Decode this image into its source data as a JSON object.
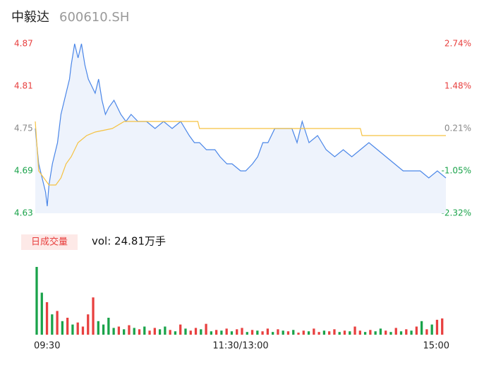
{
  "header": {
    "name": "中毅达",
    "code": "600610.SH"
  },
  "chart_data": [
    {
      "type": "line",
      "xlim": [
        0,
        240
      ],
      "ylim": [
        4.63,
        4.87
      ],
      "yticks": [
        4.87,
        4.81,
        4.75,
        4.69,
        4.63
      ],
      "y2lim": [
        -2.32,
        2.74
      ],
      "y2ticks": [
        {
          "value": 2.74,
          "label": "2.74%"
        },
        {
          "value": 1.48,
          "label": "1.48%"
        },
        {
          "value": 0.21,
          "label": "0.21%"
        },
        {
          "value": -1.05,
          "label": "-1.05%"
        },
        {
          "value": -2.32,
          "label": "-2.32%"
        }
      ],
      "tick_colors": [
        "#e8403f",
        "#e8403f",
        "#888888",
        "#1aa34a",
        "#1aa34a"
      ],
      "fill": "#eef3fc",
      "series": [
        {
          "color": "#4a86e8",
          "x": [
            0,
            2,
            4,
            6,
            7,
            8,
            10,
            13,
            15,
            18,
            20,
            21,
            23,
            25,
            27,
            29,
            31,
            33,
            35,
            37,
            39,
            41,
            43,
            46,
            48,
            50,
            53,
            56,
            60,
            65,
            70,
            75,
            80,
            85,
            90,
            93,
            96,
            100,
            105,
            108,
            112,
            115,
            120,
            123,
            127,
            130,
            133,
            136,
            140,
            143,
            146,
            150,
            153,
            156,
            160,
            165,
            170,
            175,
            180,
            185,
            190,
            195,
            200,
            205,
            210,
            215,
            220,
            225,
            230,
            235,
            240
          ],
          "values": [
            4.75,
            4.7,
            4.68,
            4.66,
            4.64,
            4.67,
            4.7,
            4.73,
            4.77,
            4.8,
            4.82,
            4.84,
            4.87,
            4.85,
            4.87,
            4.84,
            4.82,
            4.81,
            4.8,
            4.82,
            4.79,
            4.77,
            4.78,
            4.79,
            4.78,
            4.77,
            4.76,
            4.77,
            4.76,
            4.76,
            4.75,
            4.76,
            4.75,
            4.76,
            4.74,
            4.73,
            4.73,
            4.72,
            4.72,
            4.71,
            4.7,
            4.7,
            4.69,
            4.69,
            4.7,
            4.71,
            4.73,
            4.73,
            4.75,
            4.75,
            4.75,
            4.75,
            4.73,
            4.76,
            4.73,
            4.74,
            4.72,
            4.71,
            4.72,
            4.71,
            4.72,
            4.73,
            4.72,
            4.71,
            4.7,
            4.69,
            4.69,
            4.69,
            4.68,
            4.69,
            4.68
          ]
        },
        {
          "color": "#f5c242",
          "x": [
            0,
            2,
            5,
            8,
            12,
            15,
            18,
            21,
            25,
            30,
            35,
            45,
            52,
            95,
            96,
            190,
            191,
            240
          ],
          "values": [
            4.76,
            4.69,
            4.68,
            4.67,
            4.67,
            4.68,
            4.7,
            4.71,
            4.73,
            4.74,
            4.745,
            4.75,
            4.76,
            4.76,
            4.75,
            4.75,
            4.74,
            4.74
          ]
        }
      ]
    },
    {
      "type": "bar",
      "label": "日成交量",
      "summary": "vol: 24.81万手",
      "xlim": [
        0,
        240
      ],
      "ylim": [
        0,
        100
      ],
      "xticks": [
        {
          "value": 0,
          "label": "09:30"
        },
        {
          "value": 120,
          "label": "11:30/13:00"
        },
        {
          "value": 240,
          "label": "15:00"
        }
      ],
      "x": [
        0,
        3,
        6,
        9,
        12,
        15,
        18,
        21,
        24,
        27,
        30,
        33,
        36,
        39,
        42,
        45,
        48,
        51,
        54,
        57,
        60,
        63,
        66,
        69,
        72,
        75,
        78,
        81,
        84,
        87,
        90,
        93,
        96,
        99,
        102,
        105,
        108,
        111,
        114,
        117,
        120,
        123,
        126,
        129,
        132,
        135,
        138,
        141,
        144,
        147,
        150,
        153,
        156,
        159,
        162,
        165,
        168,
        171,
        174,
        177,
        180,
        183,
        186,
        189,
        192,
        195,
        198,
        201,
        204,
        207,
        210,
        213,
        216,
        219,
        222,
        225,
        228,
        231,
        234,
        237
      ],
      "values": [
        100,
        62,
        48,
        30,
        35,
        20,
        25,
        15,
        18,
        12,
        30,
        55,
        20,
        15,
        25,
        10,
        12,
        8,
        14,
        10,
        8,
        12,
        6,
        10,
        8,
        12,
        7,
        5,
        15,
        9,
        6,
        10,
        8,
        16,
        5,
        7,
        6,
        9,
        5,
        8,
        10,
        4,
        7,
        6,
        5,
        9,
        4,
        8,
        6,
        5,
        7,
        3,
        6,
        5,
        9,
        4,
        6,
        5,
        8,
        4,
        6,
        5,
        12,
        6,
        4,
        7,
        5,
        9,
        6,
        4,
        10,
        5,
        8,
        6,
        12,
        20,
        8,
        15,
        22,
        24
      ],
      "bar_colors": [
        "#1aa34a",
        "#1aa34a",
        "#e8403f",
        "#1aa34a",
        "#e8403f",
        "#1aa34a",
        "#e8403f",
        "#1aa34a",
        "#e8403f",
        "#e8403f",
        "#e8403f",
        "#e8403f",
        "#1aa34a",
        "#1aa34a",
        "#1aa34a",
        "#1aa34a",
        "#e8403f",
        "#1aa34a",
        "#e8403f",
        "#1aa34a",
        "#e8403f",
        "#1aa34a",
        "#e8403f",
        "#e8403f",
        "#1aa34a",
        "#1aa34a",
        "#e8403f",
        "#1aa34a",
        "#e8403f",
        "#1aa34a",
        "#e8403f",
        "#e8403f",
        "#1aa34a",
        "#e8403f",
        "#1aa34a",
        "#e8403f",
        "#1aa34a",
        "#e8403f",
        "#1aa34a",
        "#e8403f",
        "#e8403f",
        "#1aa34a",
        "#e8403f",
        "#1aa34a",
        "#e8403f",
        "#e8403f",
        "#1aa34a",
        "#e8403f",
        "#1aa34a",
        "#e8403f",
        "#1aa34a",
        "#e8403f",
        "#e8403f",
        "#1aa34a",
        "#e8403f",
        "#e8403f",
        "#1aa34a",
        "#e8403f",
        "#e8403f",
        "#1aa34a",
        "#e8403f",
        "#1aa34a",
        "#e8403f",
        "#e8403f",
        "#1aa34a",
        "#e8403f",
        "#1aa34a",
        "#1aa34a",
        "#e8403f",
        "#1aa34a",
        "#e8403f",
        "#1aa34a",
        "#e8403f",
        "#1aa34a",
        "#e8403f",
        "#1aa34a",
        "#e8403f",
        "#1aa34a",
        "#e8403f",
        "#e8403f"
      ]
    }
  ]
}
